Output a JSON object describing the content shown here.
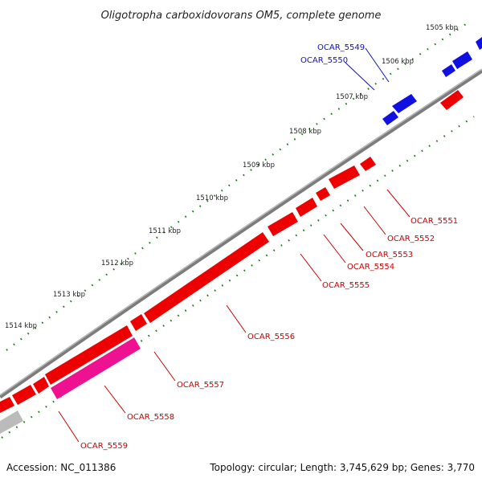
{
  "title": "Oligotropha carboxidovorans OM5, complete genome",
  "footer": {
    "accession": "Accession: NC_011386",
    "summary": "Topology: circular; Length: 3,745,629 bp; Genes: 3,770"
  },
  "colors": {
    "forward_strand": "#1010e0",
    "reverse_strand": "#ee0000",
    "highlight_gene": "#ee1190",
    "unannotated": "#bbbbbb",
    "backbone": "#888888",
    "tick": "#1a7a1a",
    "forward_label": "#1010c0",
    "reverse_label": "#cc0000"
  },
  "scale_labels": [
    "1505 kbp",
    "1506 kbp",
    "1507 kbp",
    "1508 kbp",
    "1509 kbp",
    "1510 kbp",
    "1511 kbp",
    "1512 kbp",
    "1513 kbp",
    "1514 kbp"
  ],
  "genes": [
    {
      "label": "OCAR_5549",
      "strand": "forward"
    },
    {
      "label": "OCAR_5550",
      "strand": "forward"
    },
    {
      "label": "OCAR_5551",
      "strand": "reverse"
    },
    {
      "label": "OCAR_5552",
      "strand": "reverse"
    },
    {
      "label": "OCAR_5553",
      "strand": "reverse"
    },
    {
      "label": "OCAR_5554",
      "strand": "reverse"
    },
    {
      "label": "OCAR_5555",
      "strand": "reverse"
    },
    {
      "label": "OCAR_5556",
      "strand": "reverse"
    },
    {
      "label": "OCAR_5557",
      "strand": "reverse"
    },
    {
      "label": "OCAR_5558",
      "strand": "reverse"
    },
    {
      "label": "OCAR_5559",
      "strand": "reverse"
    }
  ]
}
